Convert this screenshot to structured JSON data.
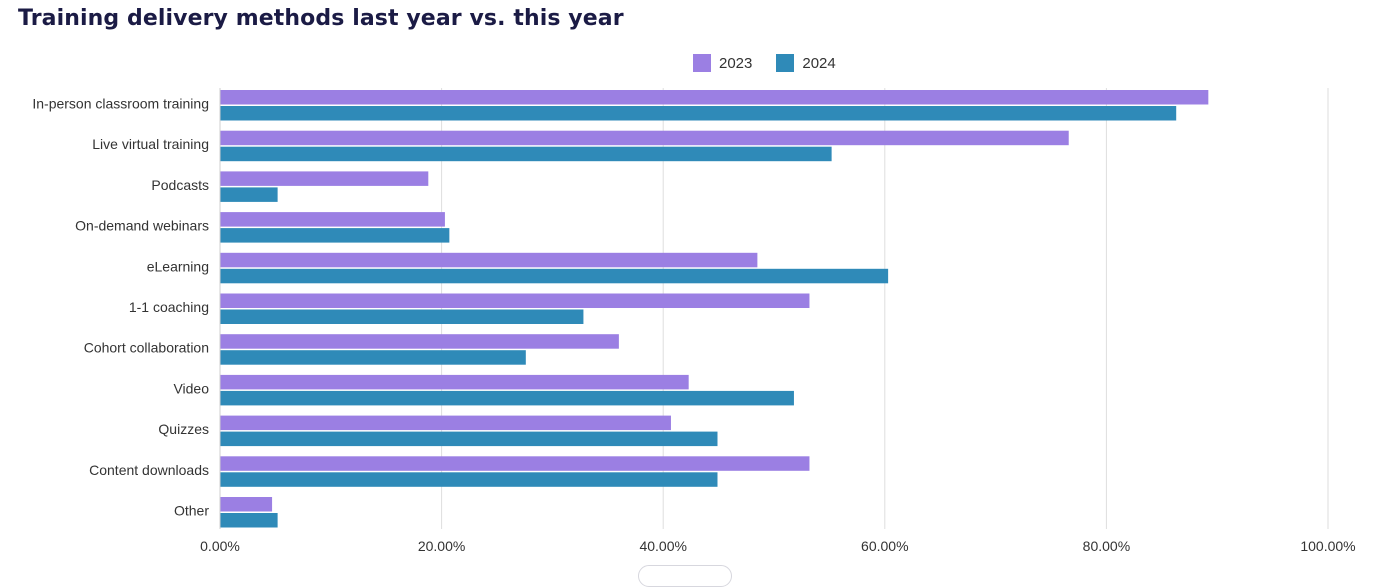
{
  "title": "Training delivery methods last year vs. this year",
  "chart_data": {
    "type": "bar",
    "orientation": "horizontal",
    "title": "Training delivery methods last year vs. this year",
    "categories": [
      "In-person classroom training",
      "Live virtual training",
      "Podcasts",
      "On-demand webinars",
      "eLearning",
      "1-1 coaching",
      "Cohort collaboration",
      "Video",
      "Quizzes",
      "Content downloads",
      "Other"
    ],
    "series": [
      {
        "name": "2023",
        "color": "#9b7fe3",
        "values": [
          89.2,
          76.6,
          18.8,
          20.3,
          48.5,
          53.2,
          36.0,
          42.3,
          40.7,
          53.2,
          4.7
        ]
      },
      {
        "name": "2024",
        "color": "#2f8ab8",
        "values": [
          86.3,
          55.2,
          5.2,
          20.7,
          60.3,
          32.8,
          27.6,
          51.8,
          44.9,
          44.9,
          5.2
        ]
      }
    ],
    "xlim": [
      0,
      100
    ],
    "xticks": [
      "0.00%",
      "20.00%",
      "40.00%",
      "60.00%",
      "80.00%",
      "100.00%"
    ],
    "grid": "vertical",
    "legend_position": "top-center"
  }
}
